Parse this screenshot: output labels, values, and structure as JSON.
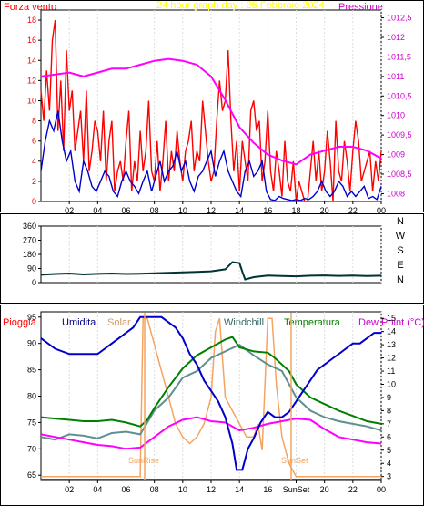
{
  "chart_data": [
    {
      "type": "line",
      "title": "24 hour graph day : 25 Febbraio 2024",
      "left_axis_label": "Forza vento",
      "right_axis_label": "Pressione",
      "x_ticks": [
        "02",
        "04",
        "06",
        "08",
        "10",
        "12",
        "14",
        "16",
        "18",
        "20",
        "22",
        "00"
      ],
      "y_left_ticks": [
        "0",
        "2",
        "4",
        "6",
        "8",
        "10",
        "12",
        "14",
        "16",
        "18"
      ],
      "y_left_range": [
        0,
        19
      ],
      "y_right_ticks": [
        "1008",
        "1008,5",
        "1009",
        "1009,5",
        "1010",
        "1010,5",
        "1011",
        "1011,5",
        "1012",
        "1012,5"
      ],
      "y_right_range": [
        1007.8,
        1012.7
      ],
      "series": [
        {
          "key": "gust",
          "color": "#ff0000",
          "axis": "left",
          "x": [
            0.0,
            0.2,
            0.4,
            0.6,
            0.8,
            1.0,
            1.2,
            1.4,
            1.6,
            1.8,
            2.0,
            2.2,
            2.4,
            2.6,
            2.8,
            3.0,
            3.2,
            3.4,
            3.6,
            3.8,
            4.0,
            4.2,
            4.4,
            4.6,
            4.8,
            5.0,
            5.2,
            5.4,
            5.6,
            5.8,
            6.0,
            6.2,
            6.4,
            6.6,
            6.8,
            7.0,
            7.2,
            7.4,
            7.6,
            7.8,
            8.0,
            8.2,
            8.4,
            8.6,
            8.8,
            9.0,
            9.2,
            9.4,
            9.6,
            9.8,
            10.0,
            10.2,
            10.4,
            10.6,
            10.8,
            11.0,
            11.2,
            11.4,
            11.6,
            11.8,
            12.0,
            12.2,
            12.4,
            12.6,
            12.8,
            13.0,
            13.2,
            13.4,
            13.6,
            13.8,
            14.0,
            14.2,
            14.4,
            14.6,
            14.8,
            15.0,
            15.2,
            15.4,
            15.6,
            15.8,
            16.0,
            16.2,
            16.4,
            16.6,
            16.8,
            17.0,
            17.2,
            17.4,
            17.6,
            17.8,
            18.0,
            18.2,
            18.4,
            18.6,
            18.8,
            19.0,
            19.2,
            19.4,
            19.6,
            19.8,
            20.0,
            20.2,
            20.4,
            20.6,
            20.8,
            21.0,
            21.2,
            21.4,
            21.6,
            21.8,
            22.0,
            22.2,
            22.4,
            22.6,
            22.8,
            23.0,
            23.2,
            23.4,
            23.6,
            23.8,
            24.0
          ],
          "values": [
            11,
            8,
            13,
            9,
            16,
            18,
            7,
            12,
            5,
            15,
            9,
            11,
            5,
            7,
            9,
            4,
            11,
            3,
            5,
            8,
            7,
            4,
            9,
            2,
            6,
            8,
            1,
            3,
            4,
            2,
            6,
            9,
            1,
            4,
            2,
            7,
            3,
            5,
            10,
            3,
            2,
            6,
            1,
            4,
            8,
            2,
            5,
            3,
            7,
            4,
            2,
            5,
            6,
            8,
            3,
            5,
            4,
            10,
            7,
            4,
            2,
            3,
            8,
            12,
            9,
            10,
            15,
            8,
            3,
            6,
            1,
            6,
            4,
            2,
            9,
            10,
            7,
            8,
            2,
            4,
            9,
            3,
            1,
            5,
            3,
            0.5,
            6,
            2,
            1,
            4,
            0,
            2,
            1,
            0,
            0,
            3,
            6,
            2,
            5,
            1,
            3,
            7,
            4,
            0,
            8,
            3,
            2,
            6,
            4,
            1,
            5,
            8,
            6,
            2,
            3,
            4,
            5,
            1,
            4,
            2,
            5
          ]
        },
        {
          "key": "wind",
          "color": "#0000cc",
          "axis": "left",
          "x": [
            0.0,
            0.3,
            0.6,
            0.9,
            1.2,
            1.5,
            1.8,
            2.1,
            2.4,
            2.7,
            3.0,
            3.3,
            3.6,
            3.9,
            4.2,
            4.5,
            4.8,
            5.1,
            5.4,
            5.7,
            6.0,
            6.3,
            6.6,
            6.9,
            7.2,
            7.5,
            7.8,
            8.1,
            8.4,
            8.7,
            9.0,
            9.3,
            9.6,
            9.9,
            10.2,
            10.5,
            10.8,
            11.1,
            11.4,
            11.7,
            12.0,
            12.3,
            12.6,
            12.9,
            13.2,
            13.5,
            13.8,
            14.1,
            14.4,
            14.7,
            15.0,
            15.3,
            15.6,
            15.9,
            16.2,
            16.5,
            16.8,
            17.1,
            17.4,
            17.7,
            18.0,
            18.3,
            18.6,
            18.9,
            19.2,
            19.5,
            19.8,
            20.1,
            20.4,
            20.7,
            21.0,
            21.3,
            21.6,
            21.9,
            22.2,
            22.5,
            22.8,
            23.1,
            23.4,
            23.7,
            24.0
          ],
          "values": [
            3,
            6,
            8,
            7,
            9,
            6,
            4,
            5,
            2,
            1,
            4,
            3,
            1.5,
            1,
            2,
            3,
            2.5,
            1,
            0.5,
            2,
            3,
            2,
            1.5,
            0.8,
            2,
            3,
            1,
            2.5,
            4,
            2,
            3,
            3.5,
            5,
            3,
            4,
            2,
            1,
            2.5,
            3,
            4,
            5,
            2.5,
            4,
            5,
            3,
            2,
            1,
            0.5,
            3,
            4,
            2.5,
            3,
            4,
            1,
            0.2,
            0.1,
            0.5,
            0.3,
            0.2,
            0.1,
            0.2,
            0.1,
            0.3,
            0.2,
            0.5,
            1,
            2,
            1,
            0.5,
            1,
            2,
            1.5,
            0.5,
            1,
            0.5,
            1,
            1.5,
            0.3,
            0.5,
            0.2,
            1.5
          ]
        },
        {
          "key": "pressure",
          "color": "#ff00ff",
          "axis": "right",
          "x": [
            0,
            1,
            2,
            3,
            4,
            5,
            6,
            7,
            8,
            9,
            10,
            11,
            12,
            13,
            14,
            15,
            16,
            17,
            18,
            19,
            20,
            21,
            22,
            23,
            24
          ],
          "values": [
            1011.0,
            1011.05,
            1011.1,
            1011.0,
            1011.1,
            1011.2,
            1011.2,
            1011.3,
            1011.4,
            1011.45,
            1011.4,
            1011.3,
            1011.0,
            1010.4,
            1009.7,
            1009.3,
            1009.0,
            1008.85,
            1008.75,
            1009.0,
            1009.1,
            1009.2,
            1009.2,
            1009.1,
            1008.9
          ]
        }
      ]
    },
    {
      "type": "line",
      "title": "",
      "y_ticks": [
        "360",
        "270",
        "180",
        "90",
        "0"
      ],
      "y_range": [
        0,
        360
      ],
      "compass_labels": [
        "N",
        "W",
        "S",
        "E",
        "N"
      ],
      "series": [
        {
          "key": "direction",
          "color": "#003333",
          "x": [
            0,
            1,
            2,
            3,
            4,
            5,
            6,
            7,
            8,
            9,
            10,
            11,
            12,
            13,
            13.5,
            14,
            14.2,
            14.4,
            15,
            16,
            17,
            18,
            19,
            20,
            21,
            22,
            23,
            24
          ],
          "values": [
            50,
            55,
            58,
            52,
            56,
            58,
            55,
            57,
            60,
            62,
            65,
            68,
            72,
            85,
            130,
            125,
            70,
            20,
            35,
            45,
            42,
            40,
            44,
            46,
            43,
            45,
            42,
            44
          ]
        }
      ]
    },
    {
      "type": "line",
      "title": "",
      "labels": [
        "Pioggia",
        "Umidita",
        "Solar",
        "Windchill",
        "Temperatura",
        "Dew Point (°C)"
      ],
      "label_colors": [
        "#ff0000",
        "#000080",
        "#cc9966",
        "#336666",
        "#008000",
        "#cc00cc"
      ],
      "y_left_ticks": [
        "65",
        "70",
        "75",
        "80",
        "85",
        "90",
        "95"
      ],
      "y_left_range": [
        64,
        96
      ],
      "y_right_ticks": [
        "3",
        "4",
        "5",
        "6",
        "7",
        "8",
        "9",
        "10",
        "11",
        "12",
        "13",
        "14",
        "15"
      ],
      "y_right_range": [
        2.7,
        15.5
      ],
      "annotations": [
        "SunRise",
        "SunSet"
      ],
      "x_ticks": [
        "02",
        "04",
        "06",
        "08",
        "10",
        "12",
        "14",
        "16",
        "SunSet",
        "20",
        "22",
        "00"
      ],
      "series": [
        {
          "key": "humidity",
          "color": "#0000cc",
          "axis": "left",
          "x": [
            0,
            1,
            2,
            3,
            4,
            4.5,
            5,
            5.5,
            6,
            6.5,
            7,
            7.5,
            8,
            8.5,
            9,
            9.5,
            10,
            10.5,
            11,
            11.5,
            12,
            12.5,
            13,
            13.5,
            13.8,
            14.2,
            14.6,
            15,
            15.5,
            16,
            16.5,
            17,
            17.5,
            18,
            18.5,
            19,
            19.5,
            20,
            20.5,
            21,
            21.5,
            22,
            22.5,
            23,
            23.5,
            24
          ],
          "values": [
            91,
            89,
            88,
            88,
            88,
            89,
            90,
            91,
            92,
            93,
            95,
            95,
            95,
            95,
            94,
            93,
            91,
            88,
            86,
            83,
            81,
            79,
            76,
            71,
            66,
            66,
            70,
            72,
            75,
            77,
            76,
            76,
            77,
            79,
            81,
            83,
            85,
            86,
            87,
            88,
            89,
            90,
            90,
            91,
            92,
            92
          ]
        },
        {
          "key": "solar",
          "color": "#f4a460",
          "axis": "right",
          "x": [
            0,
            6.5,
            7,
            7.2,
            7.5,
            8,
            8.5,
            9,
            9.5,
            10,
            10.5,
            11,
            11.5,
            12,
            12.3,
            12.6,
            13,
            13.5,
            14,
            14.5,
            15,
            15.3,
            15.6,
            16,
            16.3,
            16.6,
            17,
            17.5,
            18,
            24
          ],
          "values": [
            3,
            3,
            3,
            15,
            15,
            13,
            11,
            9,
            7,
            6,
            5.5,
            6,
            7,
            9,
            14,
            15,
            9,
            8,
            7,
            6,
            6,
            7,
            5,
            15,
            15,
            10,
            6,
            4,
            3,
            3
          ]
        },
        {
          "key": "windchill",
          "color": "#5f8f8f",
          "axis": "right",
          "x": [
            0,
            1,
            2,
            3,
            4,
            5,
            6,
            7,
            8,
            9,
            10,
            11,
            12,
            13,
            14,
            15,
            16,
            17,
            18,
            19,
            20,
            21,
            22,
            23,
            24
          ],
          "values": [
            6,
            5.8,
            6.2,
            6.1,
            5.9,
            6.3,
            6.4,
            6.2,
            8,
            9,
            10.5,
            11,
            12,
            12.5,
            13,
            12.2,
            11.5,
            11,
            9,
            8,
            7.5,
            7.2,
            7,
            6.8,
            6.5
          ]
        },
        {
          "key": "temperature",
          "color": "#008000",
          "axis": "right",
          "x": [
            0,
            1,
            2,
            3,
            4,
            5,
            6,
            7,
            7.5,
            8,
            9,
            10,
            11,
            12,
            13,
            13.5,
            14,
            15,
            16,
            16.5,
            17,
            17.5,
            18,
            19,
            20,
            21,
            22,
            23,
            24
          ],
          "values": [
            7.5,
            7.4,
            7.3,
            7.2,
            7.2,
            7.3,
            7.1,
            6.8,
            7.3,
            8.2,
            9.8,
            11.2,
            12.2,
            12.8,
            13.4,
            13.6,
            12.8,
            12.5,
            12.4,
            12.0,
            11.5,
            11.0,
            10.0,
            9.0,
            8.5,
            8.0,
            7.6,
            7.2,
            7.0
          ]
        },
        {
          "key": "dewpoint",
          "color": "#ff00ff",
          "axis": "right",
          "x": [
            0,
            1,
            2,
            3,
            4,
            5,
            6,
            7,
            8,
            9,
            10,
            11,
            12,
            13,
            14,
            15,
            16,
            17,
            18,
            19,
            20,
            21,
            22,
            23,
            24
          ],
          "values": [
            6.2,
            6.0,
            5.8,
            5.6,
            5.4,
            5.3,
            5.1,
            5.2,
            6.0,
            6.8,
            7.3,
            7.5,
            7.2,
            7.1,
            6.5,
            6.7,
            7.0,
            7.2,
            7.4,
            7.3,
            6.6,
            6.0,
            5.8,
            5.6,
            5.5
          ]
        }
      ]
    }
  ]
}
